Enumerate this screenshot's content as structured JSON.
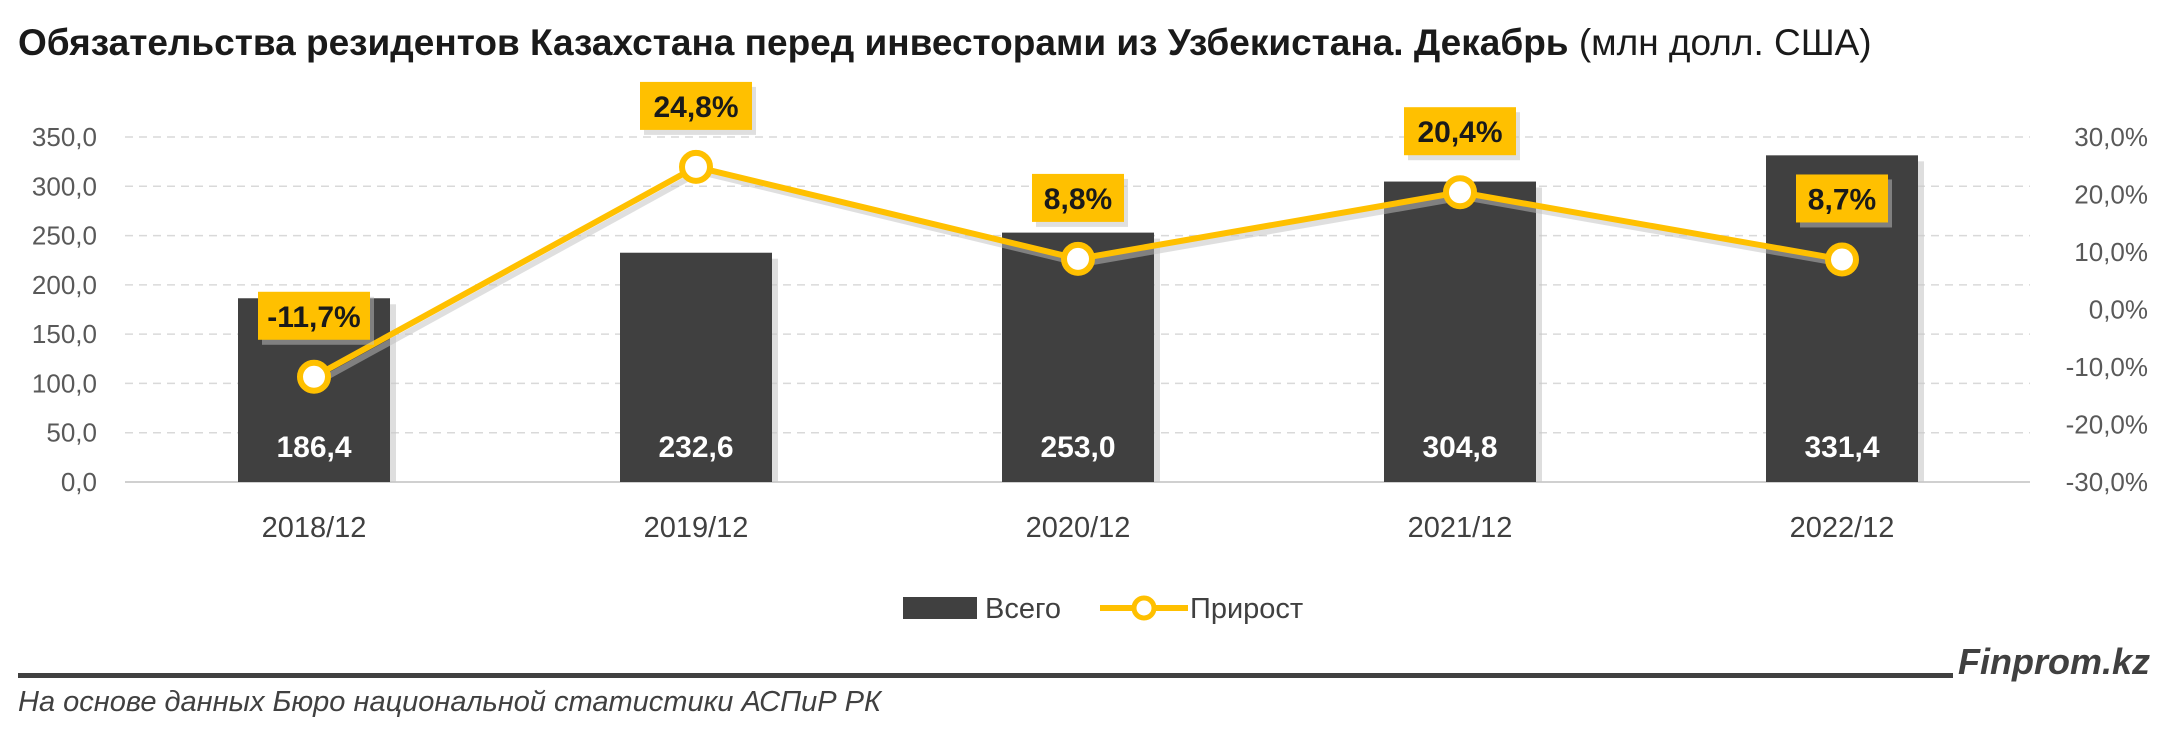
{
  "title": {
    "main": "Обязательства резидентов Казахстана перед инвесторами из Узбекистана. Декабрь",
    "unit": "(млн долл. США)"
  },
  "chart_data": {
    "type": "bar",
    "categories": [
      "2018/12",
      "2019/12",
      "2020/12",
      "2021/12",
      "2022/12"
    ],
    "series": [
      {
        "name": "Всего",
        "type": "bar",
        "axis": "left",
        "color": "#404040",
        "values": [
          186.4,
          232.6,
          253.0,
          304.8,
          331.4
        ],
        "labels": [
          "186,4",
          "232,6",
          "253,0",
          "304,8",
          "331,4"
        ]
      },
      {
        "name": "Прирост",
        "type": "line",
        "axis": "right",
        "color": "#FFC000",
        "values": [
          -11.7,
          24.8,
          8.8,
          20.4,
          8.7
        ],
        "labels": [
          "-11,7%",
          "24,8%",
          "8,8%",
          "20,4%",
          "8,7%"
        ]
      }
    ],
    "y_left": {
      "ylim": [
        0,
        350
      ],
      "ticks": [
        "0,0",
        "50,0",
        "100,0",
        "150,0",
        "200,0",
        "250,0",
        "300,0",
        "350,0"
      ]
    },
    "y_right": {
      "ylim": [
        -30,
        30
      ],
      "ticks": [
        "-30,0%",
        "-20,0%",
        "-10,0%",
        "0,0%",
        "10,0%",
        "20,0%",
        "30,0%"
      ]
    },
    "grid": true,
    "legend": "bottom"
  },
  "footer": {
    "source": "На основе данных Бюро национальной статистики АСПиР РК",
    "brand": "Finprom.kz"
  }
}
